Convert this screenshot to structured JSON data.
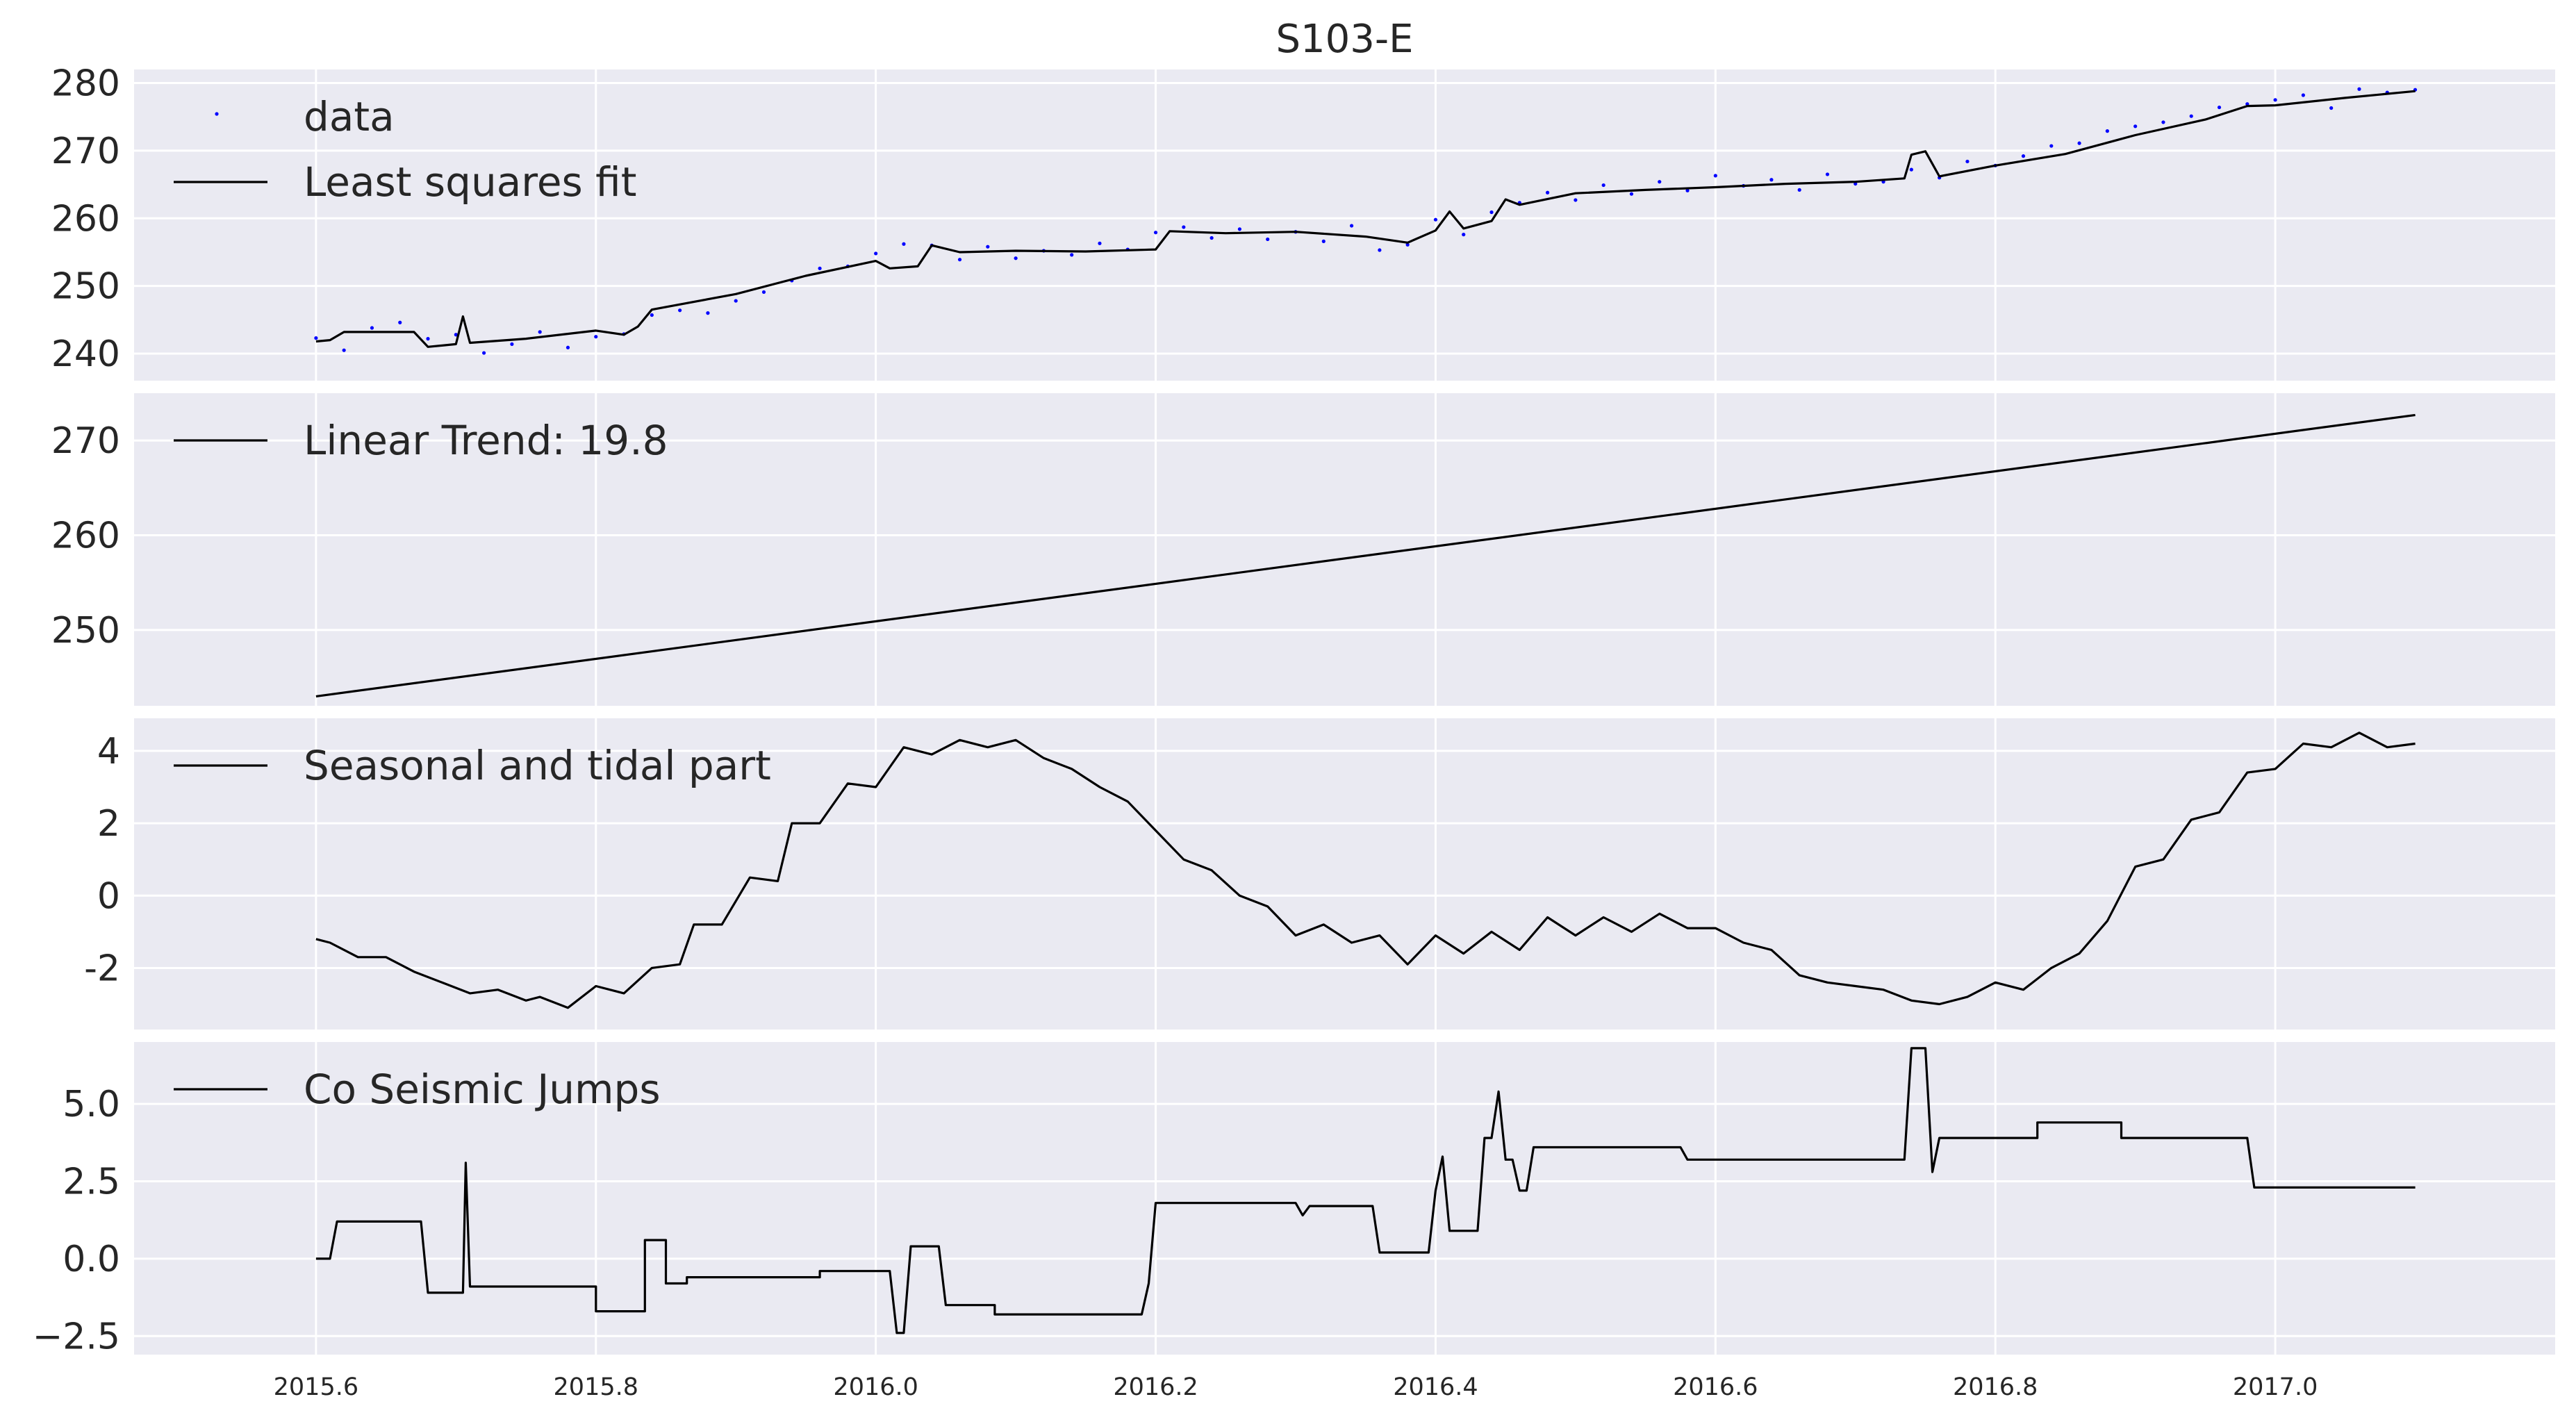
{
  "chart_data": [
    {
      "type": "scatter",
      "title": "S103-E",
      "grid": true,
      "legend": "upper-left",
      "ylim": [
        236,
        282
      ],
      "yticks": [
        240,
        250,
        260,
        270,
        280
      ],
      "xlim": [
        2015.47,
        2017.2
      ],
      "series": [
        {
          "name": "data",
          "style": "dots",
          "color": "#0000ff",
          "x": [
            2015.6,
            2015.62,
            2015.64,
            2015.66,
            2015.68,
            2015.7,
            2015.72,
            2015.74,
            2015.76,
            2015.78,
            2015.8,
            2015.82,
            2015.84,
            2015.86,
            2015.88,
            2015.9,
            2015.92,
            2015.94,
            2015.96,
            2015.98,
            2016.0,
            2016.02,
            2016.04,
            2016.06,
            2016.08,
            2016.1,
            2016.12,
            2016.14,
            2016.16,
            2016.18,
            2016.2,
            2016.22,
            2016.24,
            2016.26,
            2016.28,
            2016.3,
            2016.32,
            2016.34,
            2016.36,
            2016.38,
            2016.4,
            2016.42,
            2016.44,
            2016.46,
            2016.48,
            2016.5,
            2016.52,
            2016.54,
            2016.56,
            2016.58,
            2016.6,
            2016.62,
            2016.64,
            2016.66,
            2016.68,
            2016.7,
            2016.72,
            2016.74,
            2016.76,
            2016.78,
            2016.8,
            2016.82,
            2016.84,
            2016.86,
            2016.88,
            2016.9,
            2016.92,
            2016.94,
            2016.96,
            2016.98,
            2017.0,
            2017.02,
            2017.04,
            2017.06,
            2017.08,
            2017.1
          ],
          "values": [
            242.3,
            240.5,
            243.8,
            244.6,
            242.2,
            242.8,
            240.1,
            241.4,
            243.2,
            240.9,
            242.5,
            242.9,
            245.7,
            246.4,
            246.0,
            247.8,
            249.1,
            250.8,
            252.6,
            252.9,
            254.8,
            256.2,
            256.0,
            253.9,
            255.8,
            254.1,
            255.2,
            254.6,
            256.3,
            255.4,
            257.9,
            258.7,
            257.1,
            258.4,
            256.9,
            258.0,
            256.6,
            258.9,
            255.3,
            256.1,
            259.8,
            257.6,
            260.9,
            262.3,
            263.8,
            262.7,
            264.9,
            263.6,
            265.4,
            264.1,
            266.3,
            264.8,
            265.7,
            264.2,
            266.5,
            265.1,
            265.4,
            267.2,
            266.0,
            268.4,
            267.8,
            269.2,
            270.7,
            271.1,
            272.9,
            273.6,
            274.2,
            275.1,
            276.4,
            276.9,
            277.5,
            278.2,
            276.3,
            279.1,
            278.6,
            279.0
          ]
        },
        {
          "name": "Least squares fit",
          "style": "line",
          "color": "#000000",
          "x": [
            2015.6,
            2015.61,
            2015.62,
            2015.67,
            2015.68,
            2015.7,
            2015.705,
            2015.71,
            2015.75,
            2015.8,
            2015.82,
            2015.83,
            2015.84,
            2015.9,
            2015.95,
            2016.0,
            2016.01,
            2016.03,
            2016.04,
            2016.06,
            2016.1,
            2016.15,
            2016.2,
            2016.21,
            2016.25,
            2016.3,
            2016.35,
            2016.38,
            2016.4,
            2016.41,
            2016.42,
            2016.44,
            2016.45,
            2016.46,
            2016.5,
            2016.55,
            2016.6,
            2016.65,
            2016.7,
            2016.735,
            2016.74,
            2016.75,
            2016.76,
            2016.8,
            2016.85,
            2016.9,
            2016.95,
            2016.98,
            2017.0,
            2017.05,
            2017.1
          ],
          "values": [
            241.8,
            242.0,
            243.2,
            243.2,
            241.0,
            241.4,
            245.5,
            241.6,
            242.2,
            243.4,
            242.8,
            244.0,
            246.5,
            248.8,
            251.5,
            253.7,
            252.6,
            252.9,
            256.0,
            255.0,
            255.2,
            255.1,
            255.4,
            258.1,
            257.8,
            258.0,
            257.3,
            256.4,
            258.2,
            261.0,
            258.5,
            259.6,
            262.8,
            262.0,
            263.7,
            264.2,
            264.6,
            265.1,
            265.4,
            265.9,
            269.4,
            269.9,
            266.2,
            267.8,
            269.5,
            272.3,
            274.6,
            276.6,
            276.7,
            277.8,
            278.8
          ]
        }
      ]
    },
    {
      "type": "line",
      "grid": true,
      "legend": "upper-left",
      "ylim": [
        242,
        275
      ],
      "yticks": [
        250,
        260,
        270
      ],
      "xlim": [
        2015.47,
        2017.2
      ],
      "series": [
        {
          "name": " Linear Trend: 19.8",
          "x": [
            2015.6,
            2017.1
          ],
          "values": [
            243.0,
            272.7
          ]
        }
      ]
    },
    {
      "type": "line",
      "grid": true,
      "legend": "upper-left",
      "ylim": [
        -3.7,
        4.9
      ],
      "yticks": [
        -2,
        0,
        2,
        4
      ],
      "xlim": [
        2015.47,
        2017.2
      ],
      "series": [
        {
          "name": "Seasonal and tidal part",
          "x": [
            2015.6,
            2015.61,
            2015.63,
            2015.65,
            2015.67,
            2015.69,
            2015.71,
            2015.73,
            2015.75,
            2015.76,
            2015.78,
            2015.8,
            2015.82,
            2015.84,
            2015.86,
            2015.87,
            2015.89,
            2015.91,
            2015.93,
            2015.94,
            2015.96,
            2015.98,
            2016.0,
            2016.02,
            2016.04,
            2016.06,
            2016.08,
            2016.1,
            2016.12,
            2016.14,
            2016.16,
            2016.18,
            2016.2,
            2016.22,
            2016.24,
            2016.26,
            2016.28,
            2016.3,
            2016.32,
            2016.34,
            2016.36,
            2016.38,
            2016.4,
            2016.42,
            2016.44,
            2016.46,
            2016.48,
            2016.5,
            2016.52,
            2016.54,
            2016.56,
            2016.58,
            2016.6,
            2016.62,
            2016.64,
            2016.66,
            2016.68,
            2016.7,
            2016.72,
            2016.74,
            2016.76,
            2016.78,
            2016.8,
            2016.82,
            2016.84,
            2016.86,
            2016.88,
            2016.9,
            2016.92,
            2016.94,
            2016.96,
            2016.98,
            2017.0,
            2017.02,
            2017.04,
            2017.06,
            2017.08,
            2017.1
          ],
          "values": [
            -1.2,
            -1.3,
            -1.7,
            -1.7,
            -2.1,
            -2.4,
            -2.7,
            -2.6,
            -2.9,
            -2.8,
            -3.1,
            -2.5,
            -2.7,
            -2.0,
            -1.9,
            -0.8,
            -0.8,
            0.5,
            0.4,
            2.0,
            2.0,
            3.1,
            3.0,
            4.1,
            3.9,
            4.3,
            4.1,
            4.3,
            3.8,
            3.5,
            3.0,
            2.6,
            1.8,
            1.0,
            0.7,
            0.0,
            -0.3,
            -1.1,
            -0.8,
            -1.3,
            -1.1,
            -1.9,
            -1.1,
            -1.6,
            -1.0,
            -1.5,
            -0.6,
            -1.1,
            -0.6,
            -1.0,
            -0.5,
            -0.9,
            -0.9,
            -1.3,
            -1.5,
            -2.2,
            -2.4,
            -2.5,
            -2.6,
            -2.9,
            -3.0,
            -2.8,
            -2.4,
            -2.6,
            -2.0,
            -1.6,
            -0.7,
            0.8,
            1.0,
            2.1,
            2.3,
            3.4,
            3.5,
            4.2,
            4.1,
            4.5,
            4.1,
            4.2
          ]
        }
      ]
    },
    {
      "type": "line",
      "grid": true,
      "legend": "upper-left",
      "ylim": [
        -3.1,
        7.0
      ],
      "yticks": [
        -2.5,
        0.0,
        2.5,
        5.0
      ],
      "ytick_labels": [
        "−2.5",
        "0.0",
        "2.5",
        "5.0"
      ],
      "xlim": [
        2015.47,
        2017.2
      ],
      "xticks": [
        2015.6,
        2015.8,
        2016.0,
        2016.2,
        2016.4,
        2016.6,
        2016.8,
        2017.0
      ],
      "xtick_labels": [
        "2015.6",
        "2015.8",
        "2016.0",
        "2016.2",
        "2016.4",
        "2016.6",
        "2016.8",
        "2017.0"
      ],
      "series": [
        {
          "name": "Co Seismic Jumps",
          "x": [
            2015.6,
            2015.61,
            2015.615,
            2015.675,
            2015.68,
            2015.705,
            2015.707,
            2015.71,
            2015.8,
            2015.8,
            2015.835,
            2015.835,
            2015.85,
            2015.85,
            2015.865,
            2015.865,
            2015.96,
            2015.96,
            2016.01,
            2016.015,
            2016.02,
            2016.025,
            2016.045,
            2016.05,
            2016.085,
            2016.085,
            2016.19,
            2016.195,
            2016.2,
            2016.3,
            2016.305,
            2016.31,
            2016.355,
            2016.36,
            2016.395,
            2016.4,
            2016.405,
            2016.41,
            2016.43,
            2016.435,
            2016.44,
            2016.445,
            2016.45,
            2016.455,
            2016.46,
            2016.465,
            2016.47,
            2016.575,
            2016.58,
            2016.735,
            2016.74,
            2016.75,
            2016.755,
            2016.76,
            2016.83,
            2016.83,
            2016.89,
            2016.89,
            2016.98,
            2016.985,
            2017.1
          ],
          "values": [
            0.0,
            0.0,
            1.2,
            1.2,
            -1.1,
            -1.1,
            3.1,
            -0.9,
            -0.9,
            -1.7,
            -1.7,
            0.6,
            0.6,
            -0.8,
            -0.8,
            -0.6,
            -0.6,
            -0.4,
            -0.4,
            -2.4,
            -2.4,
            0.4,
            0.4,
            -1.5,
            -1.5,
            -1.8,
            -1.8,
            -0.8,
            1.8,
            1.8,
            1.4,
            1.7,
            1.7,
            0.2,
            0.2,
            2.2,
            3.3,
            0.9,
            0.9,
            3.9,
            3.9,
            5.4,
            3.2,
            3.2,
            2.2,
            2.2,
            3.6,
            3.6,
            3.2,
            3.2,
            6.8,
            6.8,
            2.8,
            3.9,
            3.9,
            4.4,
            4.4,
            3.9,
            3.9,
            2.3,
            2.3
          ]
        }
      ]
    }
  ]
}
